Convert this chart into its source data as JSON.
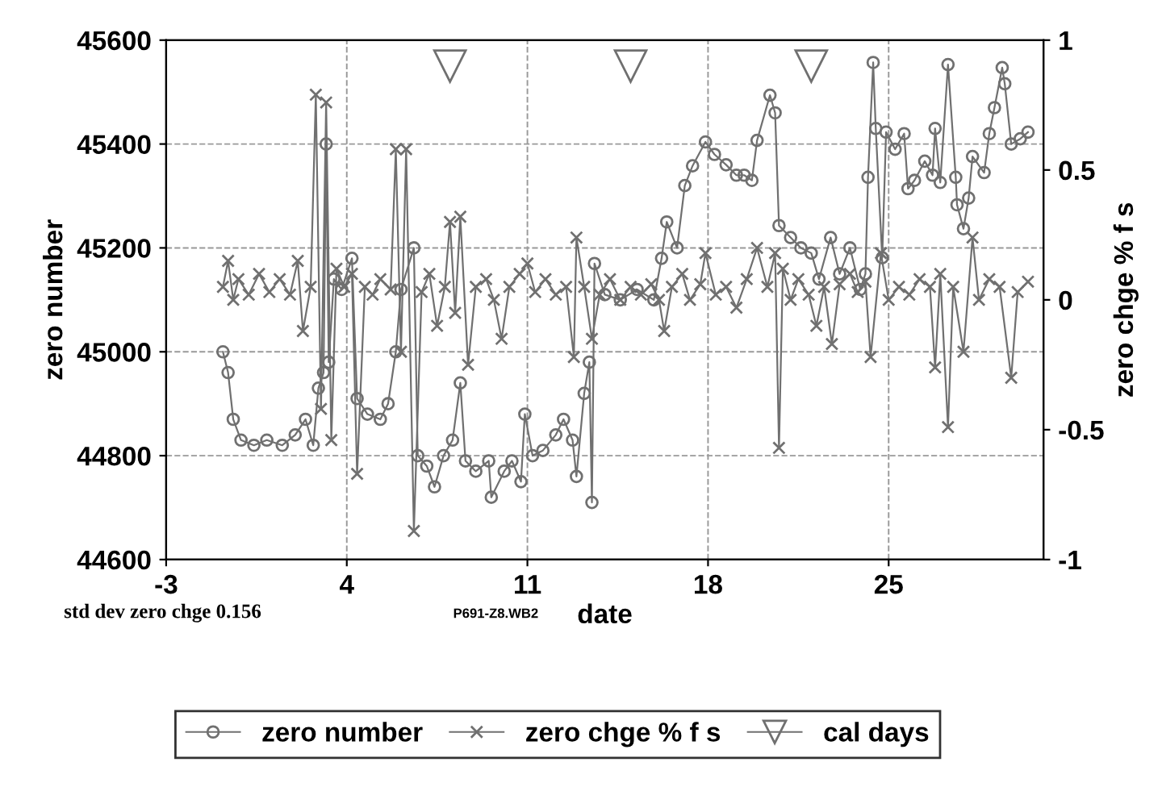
{
  "chart_data": {
    "type": "line",
    "xlabel": "date",
    "ylabel": "zero number",
    "y2label": "zero chge % f s",
    "xlim": [
      -3,
      31
    ],
    "xticks": [
      -3,
      4,
      11,
      18,
      25
    ],
    "ylim": [
      44600,
      45600
    ],
    "yticks": [
      44600,
      44800,
      45000,
      45200,
      45400,
      45600
    ],
    "y2lim": [
      -1,
      1
    ],
    "y2ticks": [
      -1,
      -0.5,
      0,
      0.5,
      1
    ],
    "grid": true,
    "legend": "bottom",
    "line_style": "solid",
    "annotations": [
      "std dev zero chge 0.156",
      "P691-Z8.WB2"
    ],
    "series": [
      {
        "name": "zero number",
        "marker": "circle",
        "color": "#707070",
        "x": [
          -0.8,
          -0.6,
          -0.4,
          -0.1,
          0.4,
          0.9,
          1.5,
          2.0,
          2.4,
          2.7,
          2.9,
          3.1,
          3.2,
          3.3,
          3.5,
          3.8,
          4.2,
          4.4,
          4.8,
          5.3,
          5.6,
          5.9,
          6.1,
          6.6,
          6.75,
          7.1,
          7.4,
          7.75,
          8.1,
          8.4,
          8.6,
          9.0,
          9.5,
          9.6,
          10.1,
          10.4,
          10.75,
          10.9,
          11.2,
          11.6,
          12.1,
          12.4,
          12.75,
          12.9,
          13.2,
          13.4,
          13.5,
          13.6,
          14.0,
          14.6,
          15.25,
          15.9,
          16.2,
          16.4,
          16.8,
          17.1,
          17.4,
          17.9,
          18.25,
          18.7,
          19.1,
          19.4,
          19.7,
          19.9,
          20.4,
          20.6,
          20.75,
          21.2,
          21.6,
          22.0,
          22.3,
          22.75,
          23.1,
          23.5,
          23.9,
          24.1,
          24.2,
          24.4,
          24.5,
          24.75,
          24.9,
          25.25,
          25.6,
          25.75,
          26.0,
          26.4,
          26.7,
          26.8,
          27.0,
          27.3,
          27.6,
          27.65,
          27.9,
          28.1,
          28.25,
          28.7,
          28.9,
          29.1,
          29.4,
          29.5,
          29.75,
          30.1,
          30.4
        ],
        "values": [
          45000,
          44960,
          44870,
          44830,
          44820,
          44830,
          44820,
          44840,
          44870,
          44820,
          44930,
          44960,
          45400,
          44980,
          45140,
          45120,
          45180,
          44910,
          44880,
          44870,
          44900,
          45000,
          45120,
          45200,
          44800,
          44780,
          44740,
          44800,
          44830,
          44940,
          44790,
          44770,
          44790,
          44720,
          44770,
          44790,
          44750,
          44880,
          44800,
          44810,
          44840,
          44870,
          44830,
          44760,
          44920,
          44980,
          44710,
          45170,
          45110,
          45100,
          45120,
          45100,
          45180,
          45250,
          45200,
          45320,
          45358,
          45404,
          45380,
          45360,
          45340,
          45340,
          45330,
          45407,
          45494,
          45460,
          45243,
          45220,
          45200,
          45190,
          45140,
          45220,
          45150,
          45200,
          45120,
          45150,
          45336,
          45557,
          45430,
          45181,
          45423,
          45390,
          45420,
          45314,
          45330,
          45367,
          45340,
          45430,
          45326,
          45553,
          45336,
          45283,
          45237,
          45296,
          45376,
          45345,
          45420,
          45470,
          45547,
          45516,
          45400,
          45410,
          45423
        ]
      },
      {
        "name": "zero chge % f s",
        "marker": "cross",
        "color": "#707070",
        "axis": "y2",
        "x": [
          -0.8,
          -0.6,
          -0.4,
          -0.2,
          0.2,
          0.6,
          1.0,
          1.4,
          1.8,
          2.1,
          2.3,
          2.6,
          2.8,
          3.0,
          3.2,
          3.4,
          3.6,
          3.9,
          4.2,
          4.4,
          4.7,
          5.0,
          5.3,
          5.7,
          5.9,
          6.1,
          6.3,
          6.6,
          6.9,
          7.2,
          7.5,
          7.8,
          8.0,
          8.2,
          8.4,
          8.7,
          9.0,
          9.4,
          9.7,
          10.0,
          10.3,
          10.7,
          11.0,
          11.3,
          11.7,
          12.1,
          12.5,
          12.8,
          12.9,
          13.2,
          13.5,
          13.8,
          14.2,
          14.6,
          15.0,
          15.4,
          15.8,
          16.1,
          16.3,
          16.6,
          17.0,
          17.3,
          17.7,
          17.9,
          18.3,
          18.7,
          19.1,
          19.5,
          19.9,
          20.3,
          20.6,
          20.75,
          20.9,
          21.2,
          21.5,
          21.9,
          22.2,
          22.5,
          22.8,
          23.1,
          23.5,
          23.8,
          24.1,
          24.3,
          24.7,
          25.0,
          25.4,
          25.8,
          26.2,
          26.6,
          26.8,
          27.0,
          27.3,
          27.5,
          27.9,
          28.25,
          28.5,
          28.9,
          29.3,
          29.75,
          30.0,
          30.4
        ],
        "values": [
          0.05,
          0.15,
          0.0,
          0.08,
          0.02,
          0.1,
          0.03,
          0.08,
          0.02,
          0.15,
          -0.12,
          0.05,
          0.79,
          -0.42,
          0.76,
          -0.54,
          0.12,
          0.05,
          0.1,
          -0.67,
          0.05,
          0.02,
          0.08,
          0.04,
          0.58,
          -0.2,
          0.58,
          -0.89,
          0.03,
          0.1,
          -0.1,
          0.05,
          0.3,
          -0.05,
          0.32,
          -0.25,
          0.05,
          0.08,
          0.0,
          -0.15,
          0.05,
          0.1,
          0.14,
          0.03,
          0.08,
          0.02,
          0.05,
          -0.22,
          0.24,
          0.05,
          -0.15,
          0.02,
          0.08,
          0.0,
          0.05,
          0.02,
          0.06,
          0.0,
          -0.12,
          0.05,
          0.1,
          0.0,
          0.06,
          0.18,
          0.02,
          0.05,
          -0.03,
          0.08,
          0.2,
          0.05,
          0.18,
          -0.57,
          0.12,
          0.0,
          0.08,
          0.02,
          -0.1,
          0.05,
          -0.17,
          0.06,
          0.1,
          0.03,
          0.07,
          -0.22,
          0.18,
          0.0,
          0.05,
          0.02,
          0.08,
          0.05,
          -0.26,
          0.1,
          -0.49,
          0.05,
          -0.2,
          0.24,
          0.0,
          0.08,
          0.05,
          -0.3,
          0.03,
          0.07
        ]
      },
      {
        "name": "cal days",
        "type": "scatter",
        "marker": "triangle",
        "color": "#707070",
        "x": [
          8,
          15,
          22
        ],
        "values": [
          45550,
          45550,
          45550
        ]
      }
    ]
  }
}
